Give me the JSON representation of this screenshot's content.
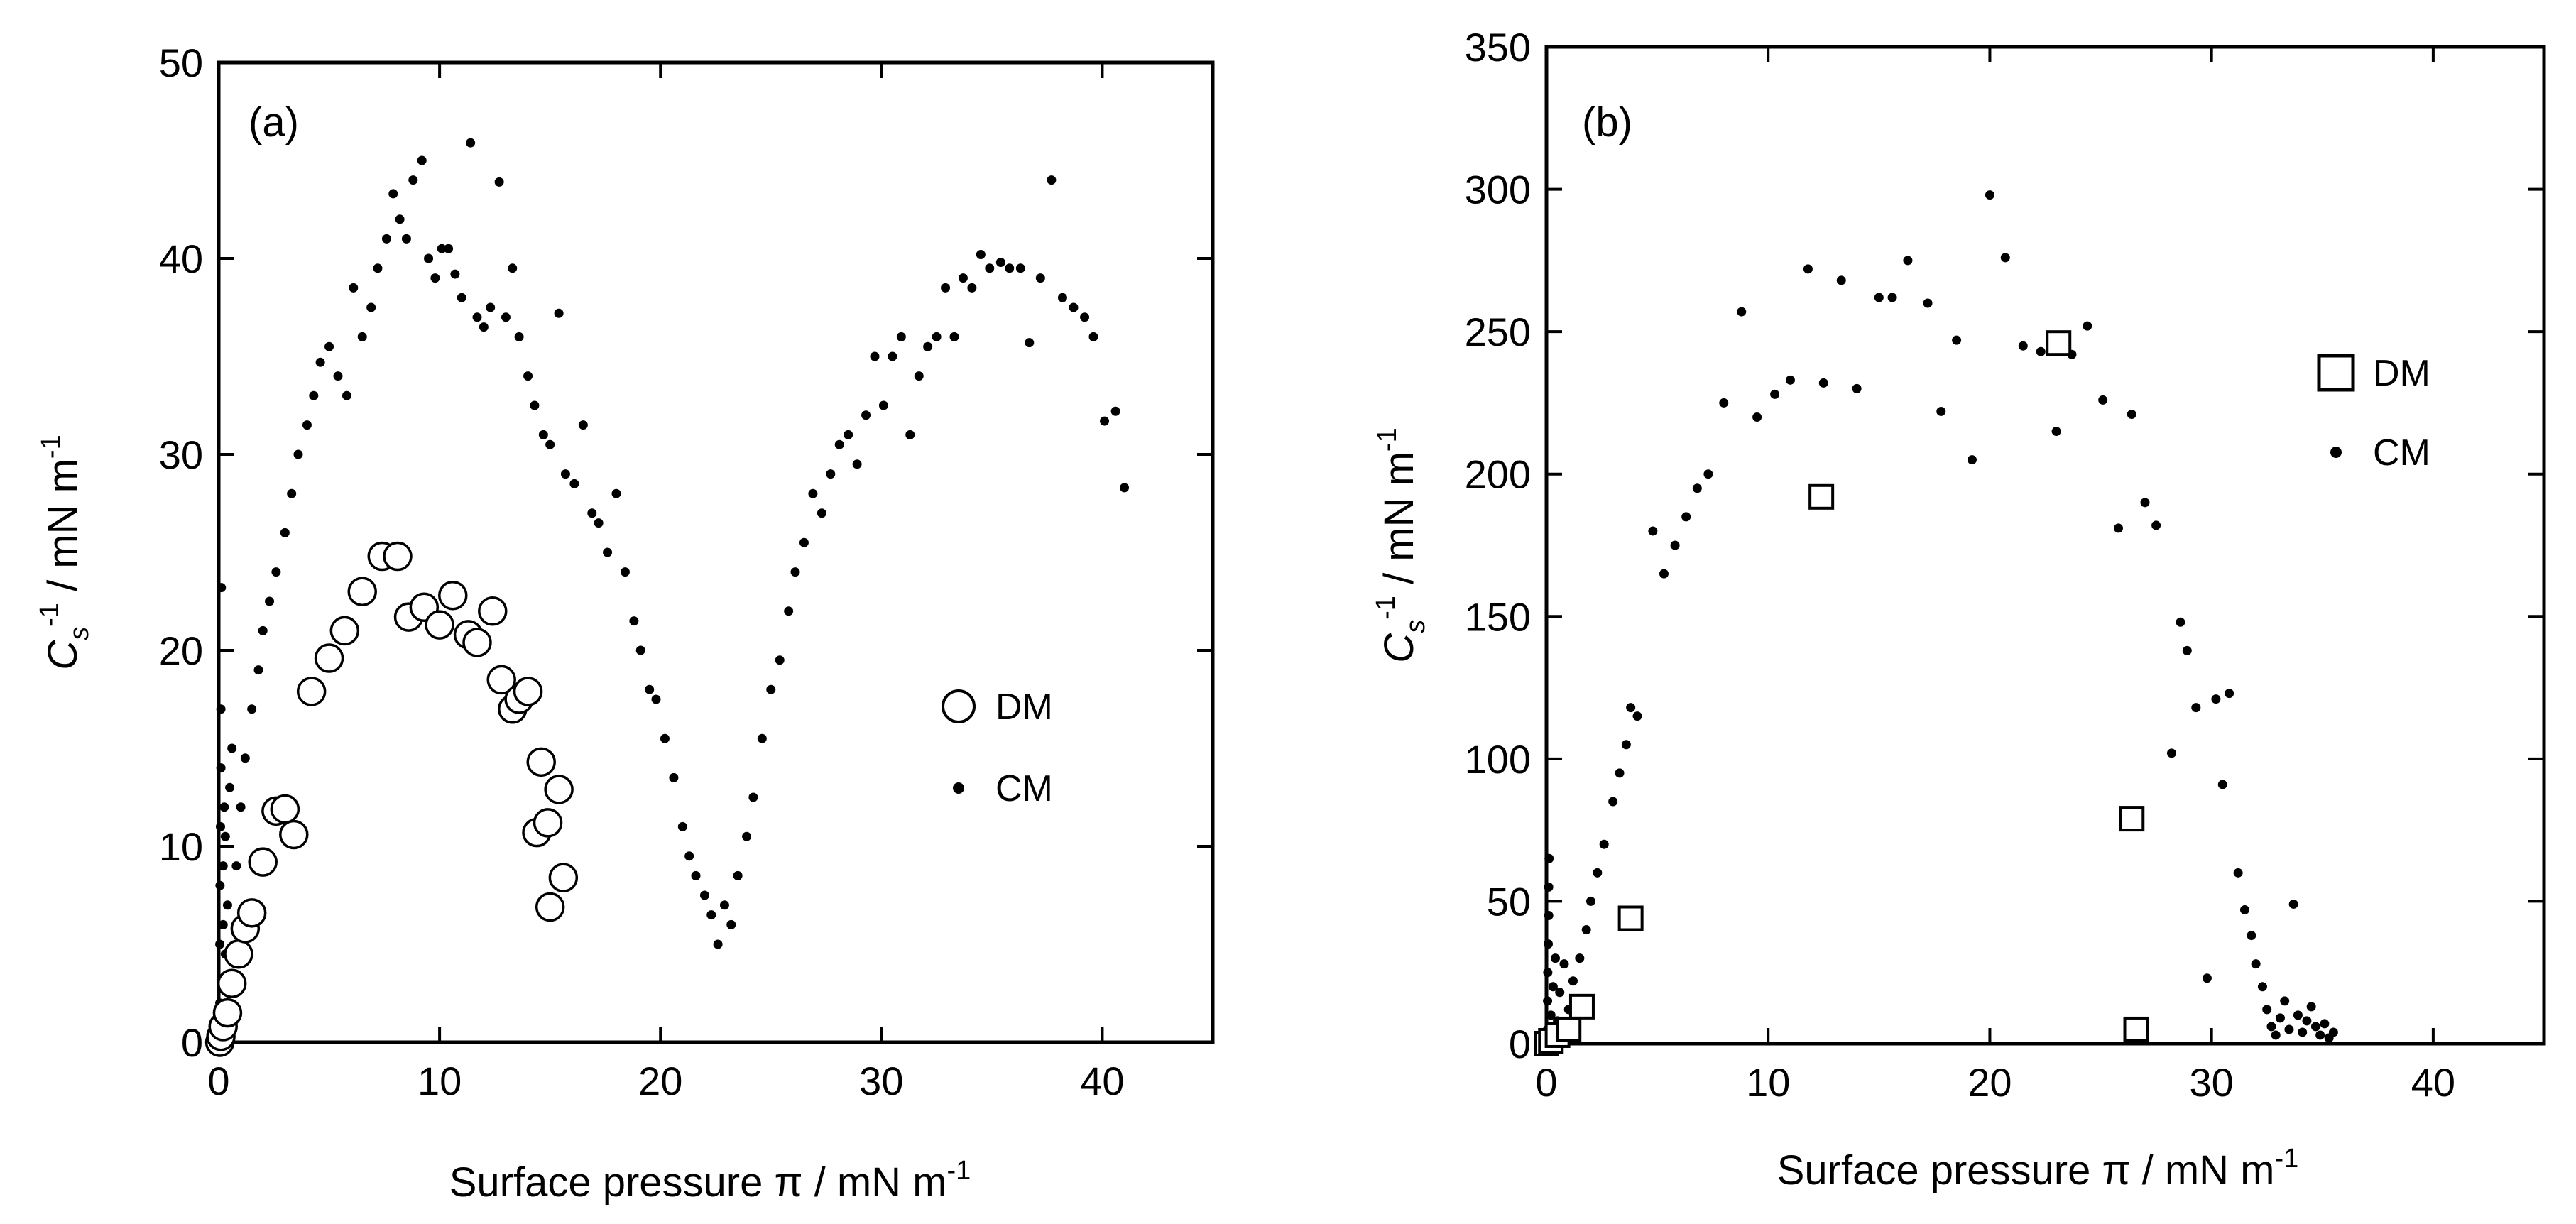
{
  "chart_data": [
    {
      "type": "scatter",
      "panel_label": "(a)",
      "xlabel": "Surface pressure π / mN m",
      "xlabel_sup": "-1",
      "ylabel_main": "C",
      "ylabel_sub": "s",
      "ylabel_sup": "-1",
      "ylabel_unit": " / mN m",
      "ylabel_unit_sup": "-1",
      "xlim": [
        0,
        45
      ],
      "ylim": [
        0,
        50
      ],
      "xticks": [
        0,
        10,
        20,
        30,
        40
      ],
      "yticks": [
        0,
        10,
        20,
        30,
        40,
        50
      ],
      "xtick_labels": [
        "0",
        "10",
        "20",
        "30",
        "40"
      ],
      "ytick_labels": [
        "0",
        "10",
        "20",
        "30",
        "40",
        "50"
      ],
      "legend_position": "center-right",
      "series": [
        {
          "name": "DM",
          "marker": "open-circle",
          "points": [
            [
              0.05,
              0.0
            ],
            [
              0.1,
              0.3
            ],
            [
              0.2,
              0.8
            ],
            [
              0.4,
              1.5
            ],
            [
              0.6,
              3.0
            ],
            [
              0.9,
              4.5
            ],
            [
              1.2,
              5.8
            ],
            [
              1.5,
              6.6
            ],
            [
              2.0,
              9.2
            ],
            [
              2.6,
              11.8
            ],
            [
              3.0,
              11.9
            ],
            [
              3.4,
              10.6
            ],
            [
              4.2,
              17.9
            ],
            [
              5.0,
              19.6
            ],
            [
              5.7,
              21.0
            ],
            [
              6.5,
              23.0
            ],
            [
              7.4,
              24.8
            ],
            [
              8.1,
              24.8
            ],
            [
              8.6,
              21.7
            ],
            [
              9.3,
              22.2
            ],
            [
              10.0,
              21.3
            ],
            [
              10.6,
              22.8
            ],
            [
              11.3,
              20.8
            ],
            [
              11.7,
              20.4
            ],
            [
              12.4,
              22.0
            ],
            [
              12.8,
              18.5
            ],
            [
              13.3,
              17.0
            ],
            [
              13.6,
              17.5
            ],
            [
              14.0,
              17.9
            ],
            [
              14.4,
              10.7
            ],
            [
              14.6,
              14.3
            ],
            [
              14.9,
              11.2
            ],
            [
              15.0,
              6.9
            ],
            [
              15.4,
              12.9
            ],
            [
              15.6,
              8.4
            ]
          ]
        },
        {
          "name": "CM",
          "marker": "dot",
          "points": [
            [
              0.05,
              2
            ],
            [
              0.05,
              5
            ],
            [
              0.06,
              8
            ],
            [
              0.08,
              11
            ],
            [
              0.1,
              14
            ],
            [
              0.1,
              17
            ],
            [
              0.12,
              23.2
            ],
            [
              0.15,
              3
            ],
            [
              0.2,
              6
            ],
            [
              0.2,
              9
            ],
            [
              0.25,
              12
            ],
            [
              0.3,
              4.5
            ],
            [
              0.3,
              10.5
            ],
            [
              0.4,
              7
            ],
            [
              0.5,
              13
            ],
            [
              0.6,
              15
            ],
            [
              0.8,
              9
            ],
            [
              1.0,
              12
            ],
            [
              1.2,
              14.5
            ],
            [
              1.5,
              17
            ],
            [
              1.8,
              19
            ],
            [
              2.0,
              21
            ],
            [
              2.3,
              22.5
            ],
            [
              2.6,
              24
            ],
            [
              3.0,
              26
            ],
            [
              3.3,
              28
            ],
            [
              3.6,
              30
            ],
            [
              4.0,
              31.5
            ],
            [
              4.3,
              33
            ],
            [
              4.6,
              34.7
            ],
            [
              5.0,
              35.5
            ],
            [
              5.4,
              34
            ],
            [
              5.8,
              33
            ],
            [
              6.1,
              38.5
            ],
            [
              6.5,
              36
            ],
            [
              6.9,
              37.5
            ],
            [
              7.2,
              39.5
            ],
            [
              7.6,
              41
            ],
            [
              7.9,
              43.3
            ],
            [
              8.2,
              42
            ],
            [
              8.5,
              41
            ],
            [
              8.8,
              44
            ],
            [
              9.2,
              45
            ],
            [
              9.5,
              40
            ],
            [
              9.8,
              39
            ],
            [
              10.1,
              40.5
            ],
            [
              10.4,
              40.5
            ],
            [
              10.7,
              39.2
            ],
            [
              11.0,
              38
            ],
            [
              11.4,
              45.9
            ],
            [
              11.7,
              37
            ],
            [
              12.0,
              36.5
            ],
            [
              12.3,
              37.5
            ],
            [
              12.7,
              43.9
            ],
            [
              13.0,
              37
            ],
            [
              13.3,
              39.5
            ],
            [
              13.6,
              36
            ],
            [
              14.0,
              34
            ],
            [
              14.3,
              32.5
            ],
            [
              14.7,
              31
            ],
            [
              15.0,
              30.5
            ],
            [
              15.4,
              37.2
            ],
            [
              15.7,
              29
            ],
            [
              16.1,
              28.5
            ],
            [
              16.5,
              31.5
            ],
            [
              16.9,
              27
            ],
            [
              17.2,
              26.5
            ],
            [
              17.6,
              25
            ],
            [
              18.0,
              28
            ],
            [
              18.4,
              24
            ],
            [
              18.8,
              21.5
            ],
            [
              19.1,
              20
            ],
            [
              19.5,
              18
            ],
            [
              19.8,
              17.5
            ],
            [
              20.2,
              15.5
            ],
            [
              20.6,
              13.5
            ],
            [
              21.0,
              11
            ],
            [
              21.3,
              9.5
            ],
            [
              21.6,
              8.5
            ],
            [
              22.0,
              7.5
            ],
            [
              22.3,
              6.5
            ],
            [
              22.6,
              5.0
            ],
            [
              22.9,
              7
            ],
            [
              23.2,
              6
            ],
            [
              23.5,
              8.5
            ],
            [
              23.9,
              10.5
            ],
            [
              24.2,
              12.5
            ],
            [
              24.6,
              15.5
            ],
            [
              25.0,
              18
            ],
            [
              25.4,
              19.5
            ],
            [
              25.8,
              22
            ],
            [
              26.1,
              24
            ],
            [
              26.5,
              25.5
            ],
            [
              26.9,
              28
            ],
            [
              27.3,
              27
            ],
            [
              27.7,
              29
            ],
            [
              28.1,
              30.5
            ],
            [
              28.5,
              31
            ],
            [
              28.9,
              29.5
            ],
            [
              29.3,
              32
            ],
            [
              29.7,
              35
            ],
            [
              30.1,
              32.5
            ],
            [
              30.5,
              35
            ],
            [
              30.9,
              36
            ],
            [
              31.3,
              31
            ],
            [
              31.7,
              34
            ],
            [
              32.1,
              35.5
            ],
            [
              32.5,
              36
            ],
            [
              32.9,
              38.5
            ],
            [
              33.3,
              36
            ],
            [
              33.7,
              39
            ],
            [
              34.1,
              38.5
            ],
            [
              34.5,
              40.2
            ],
            [
              34.9,
              39.5
            ],
            [
              35.4,
              39.8
            ],
            [
              35.8,
              39.5
            ],
            [
              36.3,
              39.5
            ],
            [
              36.7,
              35.7
            ],
            [
              37.2,
              39
            ],
            [
              37.7,
              44
            ],
            [
              38.2,
              38
            ],
            [
              38.7,
              37.5
            ],
            [
              39.2,
              37
            ],
            [
              39.6,
              36
            ],
            [
              40.1,
              31.7
            ],
            [
              40.6,
              32.2
            ],
            [
              41.0,
              28.3
            ]
          ]
        }
      ]
    },
    {
      "type": "scatter",
      "panel_label": "(b)",
      "xlabel": "Surface pressure π / mN m",
      "xlabel_sup": "-1",
      "ylabel_main": "C",
      "ylabel_sub": "s",
      "ylabel_sup": "-1",
      "ylabel_unit": " / mN m",
      "ylabel_unit_sup": "-1",
      "xlim": [
        0,
        45
      ],
      "ylim": [
        0,
        350
      ],
      "xticks": [
        0,
        10,
        20,
        30,
        40
      ],
      "yticks": [
        0,
        50,
        100,
        150,
        200,
        250,
        300,
        350
      ],
      "xtick_labels": [
        "0",
        "10",
        "20",
        "30",
        "40"
      ],
      "ytick_labels": [
        "0",
        "50",
        "100",
        "150",
        "200",
        "250",
        "300",
        "350"
      ],
      "legend_position": "top-right",
      "series": [
        {
          "name": "DM",
          "marker": "open-square",
          "points": [
            [
              0.0,
              0
            ],
            [
              0.2,
              1
            ],
            [
              0.5,
              3
            ],
            [
              1.0,
              5
            ],
            [
              1.6,
              13
            ],
            [
              3.8,
              44
            ],
            [
              12.4,
              192
            ],
            [
              23.1,
              246
            ],
            [
              26.4,
              79
            ],
            [
              26.6,
              5
            ]
          ]
        },
        {
          "name": "CM",
          "marker": "dot",
          "points": [
            [
              0.05,
              5
            ],
            [
              0.05,
              15
            ],
            [
              0.06,
              25
            ],
            [
              0.08,
              35
            ],
            [
              0.1,
              45
            ],
            [
              0.1,
              55
            ],
            [
              0.12,
              65
            ],
            [
              0.2,
              10
            ],
            [
              0.3,
              20
            ],
            [
              0.4,
              30
            ],
            [
              0.5,
              8
            ],
            [
              0.6,
              18
            ],
            [
              0.8,
              28
            ],
            [
              1.0,
              12
            ],
            [
              1.2,
              22
            ],
            [
              1.5,
              30
            ],
            [
              1.8,
              40
            ],
            [
              2.0,
              50
            ],
            [
              2.3,
              60
            ],
            [
              2.6,
              70
            ],
            [
              3.0,
              85
            ],
            [
              3.3,
              95
            ],
            [
              3.6,
              105
            ],
            [
              3.8,
              118
            ],
            [
              4.1,
              115
            ],
            [
              4.8,
              180
            ],
            [
              5.3,
              165
            ],
            [
              5.8,
              175
            ],
            [
              6.3,
              185
            ],
            [
              6.8,
              195
            ],
            [
              7.3,
              200
            ],
            [
              8.0,
              225
            ],
            [
              8.8,
              257
            ],
            [
              9.5,
              220
            ],
            [
              10.3,
              228
            ],
            [
              11.0,
              233
            ],
            [
              11.8,
              272
            ],
            [
              12.5,
              232
            ],
            [
              13.3,
              268
            ],
            [
              14.0,
              230
            ],
            [
              15.0,
              262
            ],
            [
              15.6,
              262
            ],
            [
              16.3,
              275
            ],
            [
              17.2,
              260
            ],
            [
              17.8,
              222
            ],
            [
              18.5,
              247
            ],
            [
              19.2,
              205
            ],
            [
              20.0,
              298
            ],
            [
              20.7,
              276
            ],
            [
              21.5,
              245
            ],
            [
              22.3,
              243
            ],
            [
              23.0,
              215
            ],
            [
              23.7,
              242
            ],
            [
              24.4,
              252
            ],
            [
              25.1,
              226
            ],
            [
              25.8,
              181
            ],
            [
              26.4,
              221
            ],
            [
              27.0,
              190
            ],
            [
              27.5,
              182
            ],
            [
              28.2,
              102
            ],
            [
              28.6,
              148
            ],
            [
              28.9,
              138
            ],
            [
              29.3,
              118
            ],
            [
              29.8,
              23
            ],
            [
              30.2,
              121
            ],
            [
              30.5,
              91
            ],
            [
              30.8,
              123
            ],
            [
              31.2,
              60
            ],
            [
              31.5,
              47
            ],
            [
              31.8,
              38
            ],
            [
              32.0,
              28
            ],
            [
              32.3,
              20
            ],
            [
              32.5,
              12
            ],
            [
              32.7,
              6
            ],
            [
              32.9,
              3
            ],
            [
              33.1,
              9
            ],
            [
              33.3,
              15
            ],
            [
              33.5,
              5
            ],
            [
              33.7,
              49
            ],
            [
              33.9,
              10
            ],
            [
              34.1,
              4
            ],
            [
              34.3,
              8
            ],
            [
              34.5,
              13
            ],
            [
              34.7,
              6
            ],
            [
              34.9,
              3
            ],
            [
              35.1,
              7
            ],
            [
              35.3,
              2
            ],
            [
              35.5,
              4
            ]
          ]
        }
      ]
    }
  ]
}
